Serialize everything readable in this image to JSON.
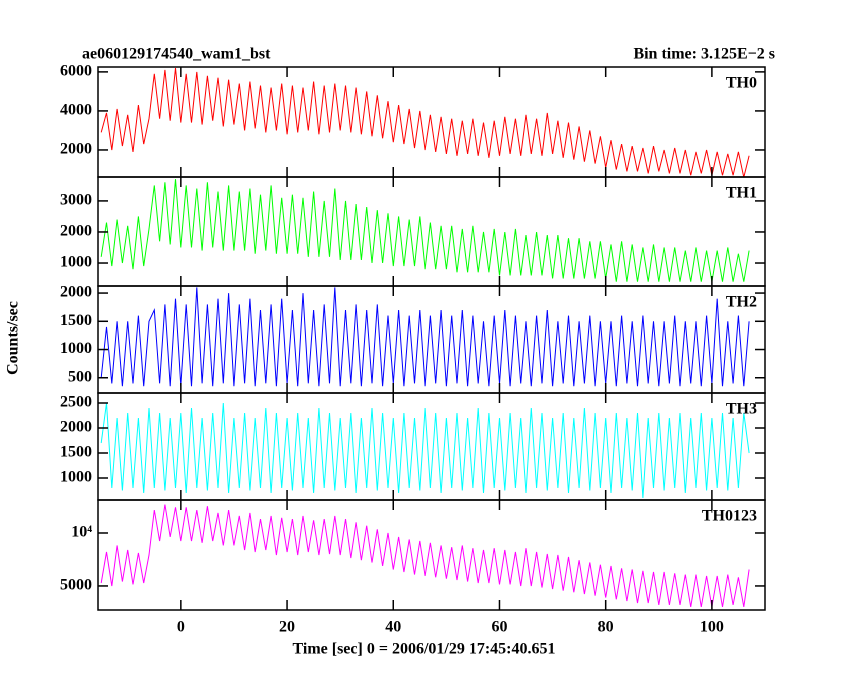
{
  "chart_data": {
    "type": "line",
    "title": "ae060129174540_wam1_bst",
    "subtitle": "Bin time: 3.125E−2 s",
    "xlabel": "Time [sec] 0 = 2006/01/29 17:45:40.651",
    "ylabel": "Counts/sec",
    "xlim": [
      -15.6,
      110
    ],
    "xticks": [
      0,
      20,
      40,
      60,
      80,
      100
    ],
    "x": [
      -15,
      -14,
      -13,
      -12,
      -11,
      -10,
      -9,
      -8,
      -7,
      -6,
      -5,
      -4,
      -3,
      -2,
      -1,
      0,
      1,
      2,
      3,
      4,
      5,
      6,
      7,
      8,
      9,
      10,
      11,
      12,
      13,
      14,
      15,
      16,
      17,
      18,
      19,
      20,
      21,
      22,
      23,
      24,
      25,
      26,
      27,
      28,
      29,
      30,
      31,
      32,
      33,
      34,
      35,
      36,
      37,
      38,
      39,
      40,
      41,
      42,
      43,
      44,
      45,
      46,
      47,
      48,
      49,
      50,
      51,
      52,
      53,
      54,
      55,
      56,
      57,
      58,
      59,
      60,
      61,
      62,
      63,
      64,
      65,
      66,
      67,
      68,
      69,
      70,
      71,
      72,
      73,
      74,
      75,
      76,
      77,
      78,
      79,
      80,
      81,
      82,
      83,
      84,
      85,
      86,
      87,
      88,
      89,
      90,
      91,
      92,
      93,
      94,
      95,
      96,
      97,
      98,
      99,
      100,
      101,
      102,
      103,
      104,
      105,
      106,
      107
    ],
    "panels": [
      {
        "name": "TH0",
        "color": "#ff0000",
        "ylim": [
          615,
          6250
        ],
        "yticks": [
          2000,
          4000,
          6000
        ],
        "values": [
          2900,
          3900,
          2000,
          4100,
          2200,
          3800,
          1900,
          4300,
          2300,
          3600,
          5900,
          3600,
          6100,
          3500,
          6200,
          3400,
          5900,
          3400,
          6000,
          3300,
          5800,
          3500,
          5700,
          3200,
          5600,
          3300,
          5400,
          3000,
          5500,
          3100,
          5300,
          2900,
          5200,
          3000,
          5400,
          2800,
          5300,
          2900,
          5200,
          3000,
          5500,
          2800,
          5300,
          2900,
          5400,
          3000,
          5300,
          2900,
          5200,
          2800,
          5000,
          2700,
          4800,
          2600,
          4500,
          2400,
          4300,
          2300,
          4100,
          2100,
          4000,
          2000,
          3800,
          1900,
          3700,
          1800,
          3600,
          1700,
          3500,
          1800,
          3600,
          1700,
          3400,
          1600,
          3500,
          1700,
          3700,
          1800,
          3600,
          1700,
          3800,
          1800,
          3600,
          1700,
          3900,
          1800,
          3500,
          1600,
          3400,
          1500,
          3200,
          1400,
          3000,
          1300,
          2700,
          1100,
          2500,
          1000,
          2300,
          900,
          2200,
          900,
          2100,
          800,
          2200,
          900,
          2000,
          800,
          2100,
          800,
          2000,
          700,
          1900,
          800,
          2000,
          700,
          1900,
          700,
          1800,
          700,
          1900,
          600,
          1700
        ]
      },
      {
        "name": "TH1",
        "color": "#00ff00",
        "ylim": [
          260,
          3770
        ],
        "yticks": [
          1000,
          2000,
          3000
        ],
        "values": [
          1200,
          2300,
          900,
          2400,
          1000,
          2200,
          800,
          2500,
          900,
          2100,
          3500,
          1700,
          3600,
          1600,
          3700,
          1500,
          3500,
          1500,
          3400,
          1400,
          3600,
          1500,
          3300,
          1400,
          3500,
          1400,
          3300,
          1400,
          3400,
          1300,
          3200,
          1400,
          3500,
          1300,
          3100,
          1300,
          3200,
          1300,
          3100,
          1200,
          3300,
          1200,
          3000,
          1200,
          3400,
          1100,
          3000,
          1100,
          2900,
          1100,
          2800,
          1000,
          2700,
          1000,
          2600,
          900,
          2500,
          900,
          2400,
          900,
          2500,
          800,
          2300,
          800,
          2200,
          800,
          2200,
          700,
          2100,
          700,
          2200,
          700,
          2000,
          700,
          2100,
          600,
          2000,
          600,
          2100,
          600,
          1900,
          600,
          2000,
          600,
          1900,
          500,
          1900,
          500,
          1800,
          500,
          1800,
          500,
          1700,
          500,
          1700,
          500,
          1600,
          400,
          1700,
          400,
          1600,
          400,
          1500,
          400,
          1600,
          400,
          1500,
          400,
          1500,
          400,
          1400,
          400,
          1500,
          400,
          1400,
          400,
          1400,
          400,
          1500,
          400,
          1300,
          400,
          1400
        ]
      },
      {
        "name": "TH2",
        "color": "#0000ff",
        "ylim": [
          230,
          2125
        ],
        "yticks": [
          500,
          1000,
          1500,
          2000
        ],
        "values": [
          500,
          1400,
          400,
          1500,
          350,
          1500,
          400,
          1600,
          350,
          1500,
          1700,
          400,
          1800,
          350,
          1900,
          350,
          1800,
          350,
          2100,
          400,
          1800,
          350,
          1900,
          400,
          2000,
          350,
          1800,
          400,
          1900,
          350,
          1700,
          400,
          1800,
          350,
          1900,
          400,
          1700,
          350,
          2000,
          400,
          1700,
          350,
          1800,
          400,
          2100,
          350,
          1700,
          400,
          1800,
          350,
          1700,
          400,
          1800,
          350,
          1600,
          400,
          1700,
          350,
          1600,
          400,
          1700,
          350,
          1600,
          400,
          1700,
          350,
          1600,
          400,
          1700,
          350,
          1600,
          400,
          1500,
          350,
          1600,
          400,
          1700,
          350,
          1600,
          400,
          1500,
          350,
          1600,
          400,
          1700,
          350,
          1500,
          400,
          1600,
          350,
          1500,
          400,
          1600,
          350,
          1500,
          400,
          1500,
          350,
          1600,
          400,
          1500,
          350,
          1600,
          400,
          1500,
          350,
          1500,
          400,
          1600,
          350,
          1500,
          400,
          1500,
          350,
          1600,
          400,
          1900,
          350,
          1500,
          400,
          1600,
          350,
          1500
        ]
      },
      {
        "name": "TH3",
        "color": "#00ffff",
        "ylim": [
          560,
          2700
        ],
        "yticks": [
          1000,
          1500,
          2000,
          2500
        ],
        "values": [
          1700,
          2500,
          800,
          2200,
          750,
          2300,
          800,
          2200,
          700,
          2400,
          800,
          2300,
          750,
          2200,
          800,
          2300,
          700,
          2400,
          800,
          2200,
          750,
          2300,
          800,
          2500,
          700,
          2200,
          800,
          2300,
          750,
          2200,
          800,
          2400,
          700,
          2300,
          800,
          2200,
          750,
          2300,
          800,
          2200,
          700,
          2400,
          800,
          2300,
          750,
          2200,
          800,
          2300,
          700,
          2200,
          800,
          2400,
          750,
          2300,
          800,
          2200,
          700,
          2300,
          800,
          2200,
          750,
          2400,
          800,
          2300,
          700,
          2200,
          800,
          2300,
          750,
          2200,
          800,
          2400,
          700,
          2300,
          800,
          2200,
          750,
          2300,
          800,
          2200,
          700,
          2400,
          800,
          2300,
          750,
          2200,
          800,
          2300,
          700,
          2200,
          800,
          2400,
          750,
          2300,
          800,
          2200,
          700,
          2300,
          800,
          2200,
          750,
          2300,
          600,
          2200,
          800,
          2300,
          750,
          2200,
          800,
          2300,
          700,
          2200,
          800,
          2300,
          750,
          2200,
          800,
          2300,
          750,
          2200,
          800,
          2300,
          1500
        ]
      },
      {
        "name": "TH0123",
        "color": "#ff00ff",
        "ylim": [
          3650,
          15400
        ],
        "log": true,
        "yticks": [
          {
            "value": 10000,
            "label": "10⁴"
          },
          5000
        ],
        "values": [
          5200,
          7800,
          5000,
          8500,
          5300,
          8000,
          5100,
          7700,
          5200,
          7500,
          13500,
          9000,
          14500,
          9500,
          14000,
          9000,
          14000,
          9000,
          13500,
          8800,
          14200,
          9000,
          13000,
          8500,
          13500,
          8500,
          12500,
          8000,
          13000,
          7800,
          12000,
          8000,
          12500,
          7500,
          12200,
          7800,
          12000,
          7500,
          12500,
          7800,
          11800,
          7500,
          12000,
          7600,
          12500,
          7500,
          12000,
          7200,
          11500,
          7000,
          11000,
          6800,
          10500,
          6500,
          10000,
          6200,
          9500,
          6000,
          9200,
          5800,
          9000,
          5700,
          8800,
          5600,
          8500,
          5500,
          8300,
          5400,
          8500,
          5300,
          8200,
          5200,
          8000,
          5200,
          8200,
          5100,
          8000,
          5100,
          7800,
          5000,
          8200,
          5000,
          7800,
          4900,
          7600,
          4800,
          7500,
          4700,
          7300,
          4600,
          7000,
          4500,
          6800,
          4400,
          6600,
          4300,
          6500,
          4200,
          6300,
          4100,
          6200,
          4000,
          6100,
          4000,
          6000,
          3900,
          6000,
          3900,
          5900,
          3900,
          5800,
          3800,
          5800,
          3800,
          5700,
          3800,
          5700,
          3800,
          5800,
          3900,
          5600,
          3800,
          6200
        ]
      }
    ]
  }
}
